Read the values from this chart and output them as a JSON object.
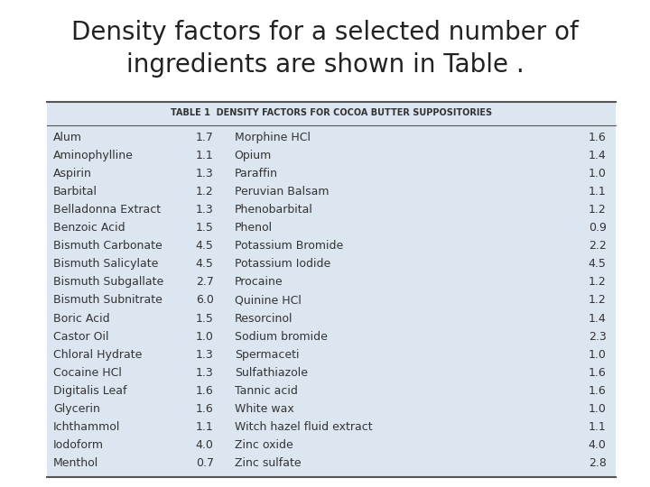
{
  "title": "Density factors for a selected number of\ningredients are shown in Table .",
  "table_title": "TABLE 1  DENSITY FACTORS FOR COCOA BUTTER SUPPOSITORIES",
  "left_col": [
    [
      "Alum",
      "1.7"
    ],
    [
      "Aminophylline",
      "1.1"
    ],
    [
      "Aspirin",
      "1.3"
    ],
    [
      "Barbital",
      "1.2"
    ],
    [
      "Belladonna Extract",
      "1.3"
    ],
    [
      "Benzoic Acid",
      "1.5"
    ],
    [
      "Bismuth Carbonate",
      "4.5"
    ],
    [
      "Bismuth Salicylate",
      "4.5"
    ],
    [
      "Bismuth Subgallate",
      "2.7"
    ],
    [
      "Bismuth Subnitrate",
      "6.0"
    ],
    [
      "Boric Acid",
      "1.5"
    ],
    [
      "Castor Oil",
      "1.0"
    ],
    [
      "Chloral Hydrate",
      "1.3"
    ],
    [
      "Cocaine HCl",
      "1.3"
    ],
    [
      "Digitalis Leaf",
      "1.6"
    ],
    [
      "Glycerin",
      "1.6"
    ],
    [
      "Ichthammol",
      "1.1"
    ],
    [
      "Iodoform",
      "4.0"
    ],
    [
      "Menthol",
      "0.7"
    ]
  ],
  "right_col": [
    [
      "Morphine HCl",
      "1.6"
    ],
    [
      "Opium",
      "1.4"
    ],
    [
      "Paraffin",
      "1.0"
    ],
    [
      "Peruvian Balsam",
      "1.1"
    ],
    [
      "Phenobarbital",
      "1.2"
    ],
    [
      "Phenol",
      "0.9"
    ],
    [
      "Potassium Bromide",
      "2.2"
    ],
    [
      "Potassium Iodide",
      "4.5"
    ],
    [
      "Procaine",
      "1.2"
    ],
    [
      "Quinine HCl",
      "1.2"
    ],
    [
      "Resorcinol",
      "1.4"
    ],
    [
      "Sodium bromide",
      "2.3"
    ],
    [
      "Spermaceti",
      "1.0"
    ],
    [
      "Sulfathiazole",
      "1.6"
    ],
    [
      "Tannic acid",
      "1.6"
    ],
    [
      "White wax",
      "1.0"
    ],
    [
      "Witch hazel fluid extract",
      "1.1"
    ],
    [
      "Zinc oxide",
      "4.0"
    ],
    [
      "Zinc sulfate",
      "2.8"
    ]
  ],
  "bg_color": "#dce6f0",
  "table_bg": "#dce6f0",
  "title_fontsize": 20,
  "table_title_fontsize": 7,
  "row_fontsize": 9,
  "title_color": "#222222",
  "row_text_color": "#333333"
}
